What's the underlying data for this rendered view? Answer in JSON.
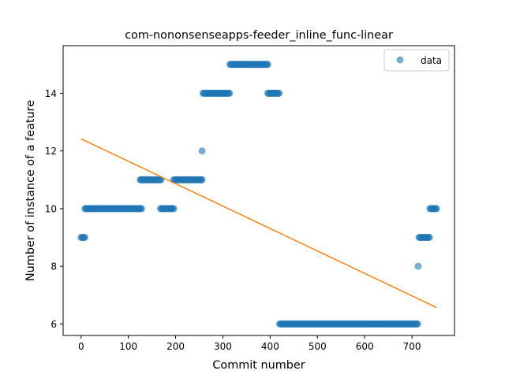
{
  "chart_data": {
    "type": "scatter",
    "title": "com-nononsenseapps-feeder_inline_func-linear",
    "xlabel": "Commit number",
    "ylabel": "Number of instance of a feature",
    "xlim": [
      -38,
      790
    ],
    "ylim": [
      5.6,
      15.65
    ],
    "x_ticks": [
      0,
      100,
      200,
      300,
      400,
      500,
      600,
      700
    ],
    "y_ticks": [
      6,
      8,
      10,
      12,
      14
    ],
    "grid": false,
    "legend": {
      "position": "top-right",
      "entries": [
        "data"
      ]
    },
    "colors": {
      "data": "#1f77b4",
      "fit": "#ff7f0e"
    },
    "series": [
      {
        "name": "data",
        "kind": "points",
        "segments": [
          {
            "x_start": 0,
            "x_end": 8,
            "y": 9
          },
          {
            "x_start": 8,
            "x_end": 128,
            "y": 10
          },
          {
            "x_start": 125,
            "x_end": 170,
            "y": 11
          },
          {
            "x_start": 168,
            "x_end": 196,
            "y": 10
          },
          {
            "x_start": 196,
            "x_end": 256,
            "y": 11
          },
          {
            "x_start": 256,
            "x_end": 256,
            "y": 12
          },
          {
            "x_start": 258,
            "x_end": 315,
            "y": 14
          },
          {
            "x_start": 315,
            "x_end": 395,
            "y": 15
          },
          {
            "x_start": 395,
            "x_end": 420,
            "y": 14
          },
          {
            "x_start": 420,
            "x_end": 713,
            "y": 6
          },
          {
            "x_start": 713,
            "x_end": 713,
            "y": 8
          },
          {
            "x_start": 715,
            "x_end": 738,
            "y": 9
          },
          {
            "x_start": 738,
            "x_end": 752,
            "y": 10
          }
        ]
      },
      {
        "name": "",
        "kind": "line",
        "x": [
          0,
          752
        ],
        "y": [
          12.42,
          6.57
        ]
      }
    ]
  }
}
